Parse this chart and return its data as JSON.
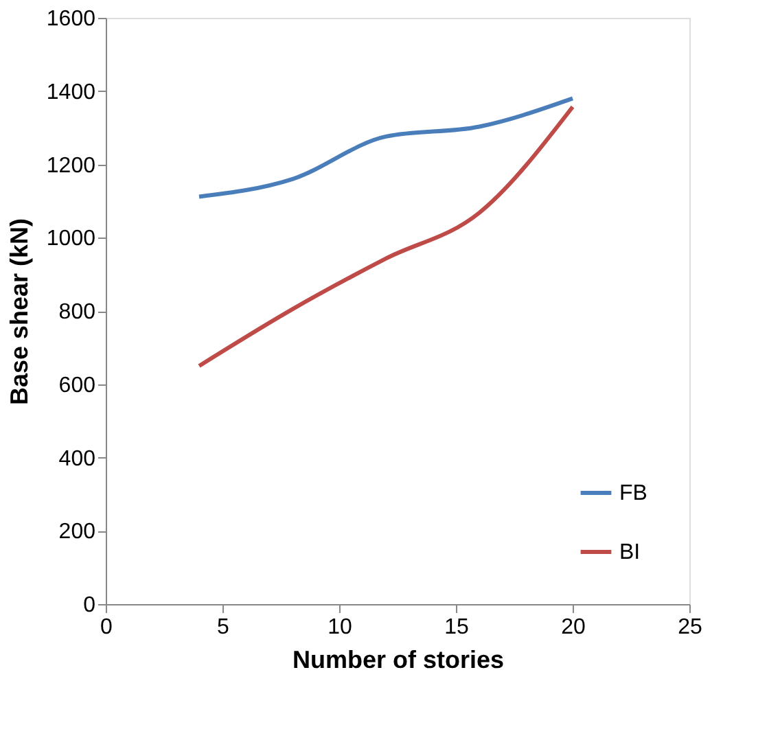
{
  "chart_data": {
    "type": "line",
    "xlabel": "Number of stories",
    "ylabel": "Base shear  (kN)",
    "x": [
      4,
      8,
      12,
      16,
      20
    ],
    "series": [
      {
        "name": "FB",
        "color": "#4a7ebb",
        "values": [
          1112,
          1160,
          1276,
          1303,
          1380
        ]
      },
      {
        "name": "BI",
        "color": "#be4b48",
        "values": [
          650,
          805,
          943,
          1068,
          1357
        ]
      }
    ],
    "xlim": [
      0,
      25
    ],
    "xticks": [
      0,
      5,
      10,
      15,
      20,
      25
    ],
    "ylim": [
      0,
      1600
    ],
    "yticks": [
      0,
      200,
      400,
      600,
      800,
      1000,
      1200,
      1400,
      1600
    ],
    "grid": false,
    "legend": "bottom right",
    "marker": "none",
    "line_style": "solid"
  }
}
